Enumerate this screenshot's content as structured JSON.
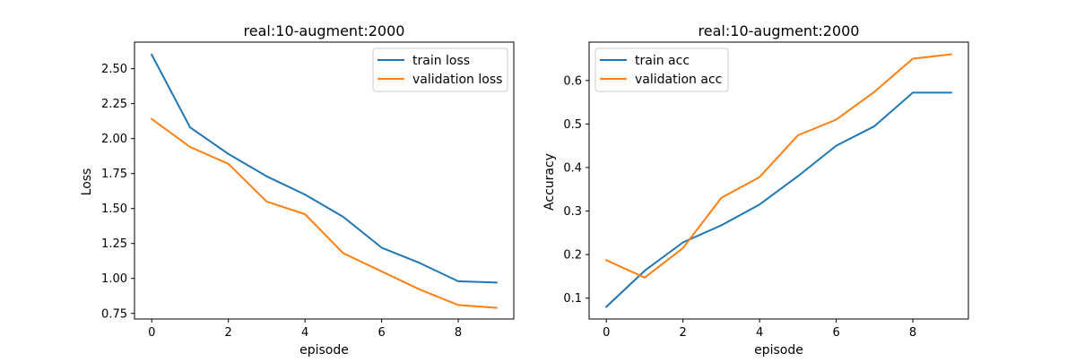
{
  "chart_data": [
    {
      "type": "line",
      "title": "real:10-augment:2000",
      "xlabel": "episode",
      "ylabel": "Loss",
      "x": [
        0,
        1,
        2,
        3,
        4,
        5,
        6,
        7,
        8,
        9
      ],
      "xlim": [
        -0.45,
        9.45
      ],
      "ylim": [
        0.71,
        2.69
      ],
      "xticks": [
        0,
        2,
        4,
        6,
        8
      ],
      "xtick_labels": [
        "0",
        "2",
        "4",
        "6",
        "8"
      ],
      "yticks": [
        0.75,
        1.0,
        1.25,
        1.5,
        1.75,
        2.0,
        2.25,
        2.5
      ],
      "ytick_labels": [
        "0.75",
        "1.00",
        "1.25",
        "1.50",
        "1.75",
        "2.00",
        "2.25",
        "2.50"
      ],
      "grid": false,
      "legend_position": "top-right",
      "series": [
        {
          "name": "train loss",
          "color": "#1f77b4",
          "values": [
            2.6,
            2.08,
            1.89,
            1.73,
            1.6,
            1.44,
            1.22,
            1.11,
            0.98,
            0.97
          ]
        },
        {
          "name": "validation loss",
          "color": "#ff7f0e",
          "values": [
            2.14,
            1.94,
            1.82,
            1.55,
            1.46,
            1.18,
            1.05,
            0.92,
            0.81,
            0.79
          ]
        }
      ]
    },
    {
      "type": "line",
      "title": "real:10-augment:2000",
      "xlabel": "episode",
      "ylabel": "Accuracy",
      "x": [
        0,
        1,
        2,
        3,
        4,
        5,
        6,
        7,
        8,
        9
      ],
      "xlim": [
        -0.45,
        9.45
      ],
      "ylim": [
        0.052,
        0.688
      ],
      "xticks": [
        0,
        2,
        4,
        6,
        8
      ],
      "xtick_labels": [
        "0",
        "2",
        "4",
        "6",
        "8"
      ],
      "yticks": [
        0.1,
        0.2,
        0.3,
        0.4,
        0.5,
        0.6
      ],
      "ytick_labels": [
        "0.1",
        "0.2",
        "0.3",
        "0.4",
        "0.5",
        "0.6"
      ],
      "grid": false,
      "legend_position": "top-left",
      "series": [
        {
          "name": "train acc",
          "color": "#1f77b4",
          "values": [
            0.08,
            0.163,
            0.228,
            0.267,
            0.315,
            0.38,
            0.45,
            0.495,
            0.572,
            0.572
          ]
        },
        {
          "name": "validation acc",
          "color": "#ff7f0e",
          "values": [
            0.187,
            0.147,
            0.215,
            0.33,
            0.378,
            0.474,
            0.51,
            0.574,
            0.65,
            0.66
          ]
        }
      ]
    }
  ]
}
